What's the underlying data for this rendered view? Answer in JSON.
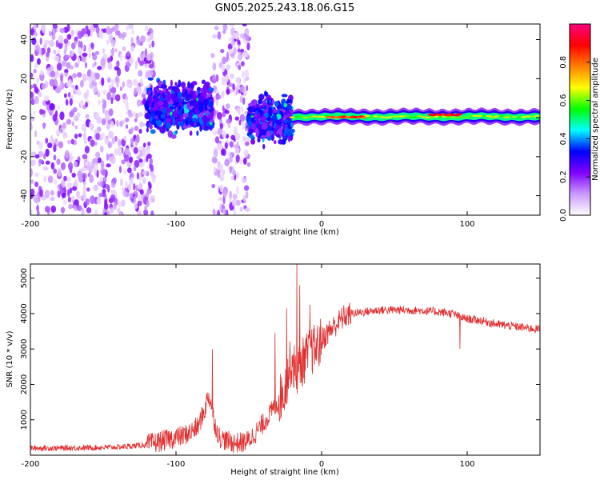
{
  "chart_data": [
    {
      "type": "heatmap",
      "title": "GN05.2025.243.18.06.G15",
      "xlabel": "Height of straight line (km)",
      "ylabel": "Frequency (Hz)",
      "xlim": [
        -200,
        150
      ],
      "ylim": [
        -50,
        48
      ],
      "xticks": [
        -200,
        -100,
        0,
        100
      ],
      "xtick_labels": [
        "-200",
        "-100",
        "0",
        "100"
      ],
      "yticks": [
        -40,
        -20,
        0,
        20,
        40
      ],
      "ytick_labels": [
        "-40",
        "-20",
        "0",
        "20",
        "40"
      ],
      "colorbar": {
        "label": "Normalized spectral amplitude",
        "range": [
          0,
          1
        ],
        "ticks": [
          0.0,
          0.2,
          0.4,
          0.6,
          0.8
        ],
        "tick_labels": [
          "0.0",
          "0.2",
          "0.4",
          "0.6",
          "0.8"
        ],
        "colors": [
          "#ffffff",
          "#cc99ff",
          "#8000ff",
          "#0000ff",
          "#00ffff",
          "#00ff00",
          "#ffff00",
          "#ff8000",
          "#ff0000",
          "#ff0080"
        ]
      },
      "regions": [
        {
          "name": "scattered noise",
          "x_range": [
            -200,
            -115
          ],
          "freq_range": [
            -50,
            48
          ],
          "level": 0.1
        },
        {
          "name": "scattered noise",
          "x_range": [
            -75,
            -50
          ],
          "freq_range": [
            -50,
            48
          ],
          "level": 0.1
        },
        {
          "name": "broadband burst",
          "x_range": [
            -120,
            -75
          ],
          "freq_range": [
            -5,
            15
          ],
          "level": 0.3
        },
        {
          "name": "transition",
          "x_range": [
            -50,
            -20
          ],
          "freq_range": [
            -10,
            8
          ],
          "level": 0.3
        },
        {
          "name": "steady carrier",
          "x_range": [
            -20,
            150
          ],
          "freq_range": [
            -2,
            4
          ],
          "center_freq": 0.5,
          "level": 0.5
        },
        {
          "name": "peak",
          "x_range": [
            75,
            95
          ],
          "freq_range": [
            0,
            3
          ],
          "center_freq": 1.5,
          "level": 0.95
        },
        {
          "name": "peak",
          "x_range": [
            5,
            30
          ],
          "freq_range": [
            -1,
            2
          ],
          "center_freq": 0.3,
          "level": 0.9
        }
      ]
    },
    {
      "type": "line",
      "xlabel": "Height of straight line (km)",
      "ylabel": "SNR (10 * v/v)",
      "xlim": [
        -200,
        150
      ],
      "ylim": [
        0,
        5400
      ],
      "xticks": [
        -200,
        -100,
        0,
        100
      ],
      "xtick_labels": [
        "-200",
        "-100",
        "0",
        "100"
      ],
      "yticks": [
        1000,
        2000,
        3000,
        4000,
        5000
      ],
      "ytick_labels": [
        "1000",
        "2000",
        "3000",
        "4000",
        "5000"
      ],
      "color": "#e03030",
      "series": [
        {
          "name": "SNR",
          "x": [
            -200,
            -180,
            -160,
            -140,
            -130,
            -120,
            -115,
            -110,
            -105,
            -100,
            -95,
            -90,
            -85,
            -80,
            -78,
            -76,
            -74,
            -72,
            -70,
            -65,
            -60,
            -55,
            -50,
            -45,
            -40,
            -35,
            -30,
            -25,
            -22,
            -20,
            -18,
            -15,
            -12,
            -10,
            -8,
            -5,
            -2,
            0,
            5,
            10,
            15,
            20,
            30,
            40,
            50,
            60,
            70,
            80,
            90,
            95,
            100,
            110,
            120,
            130,
            140,
            150
          ],
          "y": [
            200,
            200,
            210,
            230,
            260,
            300,
            350,
            400,
            450,
            500,
            550,
            650,
            800,
            1300,
            1700,
            1500,
            1000,
            700,
            500,
            400,
            350,
            350,
            420,
            650,
            900,
            1200,
            1500,
            1900,
            2500,
            2700,
            2300,
            2500,
            2700,
            2800,
            2900,
            3000,
            3100,
            3250,
            3500,
            3700,
            3900,
            4000,
            4050,
            4100,
            4100,
            4100,
            4080,
            4050,
            4000,
            3900,
            3850,
            3800,
            3700,
            3650,
            3600,
            3550
          ]
        }
      ],
      "noise_amplitude": [
        {
          "x_range": [
            -200,
            -120
          ],
          "amplitude": 80
        },
        {
          "x_range": [
            -120,
            -30
          ],
          "amplitude": 300
        },
        {
          "x_range": [
            -30,
            0
          ],
          "amplitude": 700
        },
        {
          "x_range": [
            0,
            20
          ],
          "amplitude": 350
        },
        {
          "x_range": [
            20,
            150
          ],
          "amplitude": 120
        }
      ],
      "spikes": [
        {
          "x": -75,
          "y": 3000
        },
        {
          "x": -32,
          "y": 3450
        },
        {
          "x": -24,
          "y": 4150
        },
        {
          "x": -17,
          "y": 5400
        },
        {
          "x": -15,
          "y": 4800
        },
        {
          "x": -8,
          "y": 4250
        },
        {
          "x": 95,
          "y": 3000
        }
      ]
    }
  ]
}
